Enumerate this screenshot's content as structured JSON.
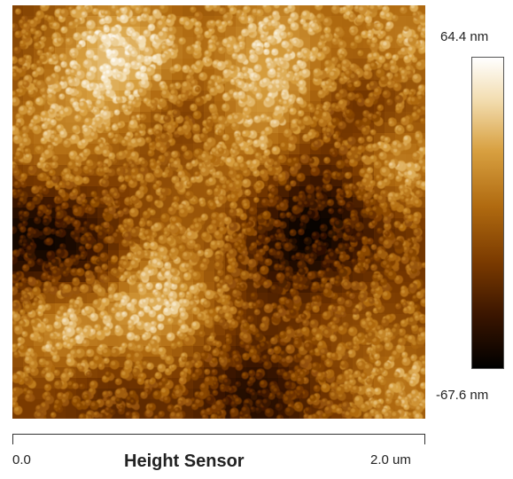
{
  "image": {
    "subject": "Atomic force microscopy height map of a granular surface",
    "colormap": [
      "#000000",
      "#3a1500",
      "#7a3a00",
      "#b06a10",
      "#d8a040",
      "#f2dcae",
      "#ffffff"
    ]
  },
  "colorbar": {
    "max_label": "64.4 nm",
    "min_label": "-67.6 nm"
  },
  "scale": {
    "start_label": "0.0",
    "end_label": "2.0 um"
  },
  "channel": {
    "title": "Height Sensor"
  }
}
